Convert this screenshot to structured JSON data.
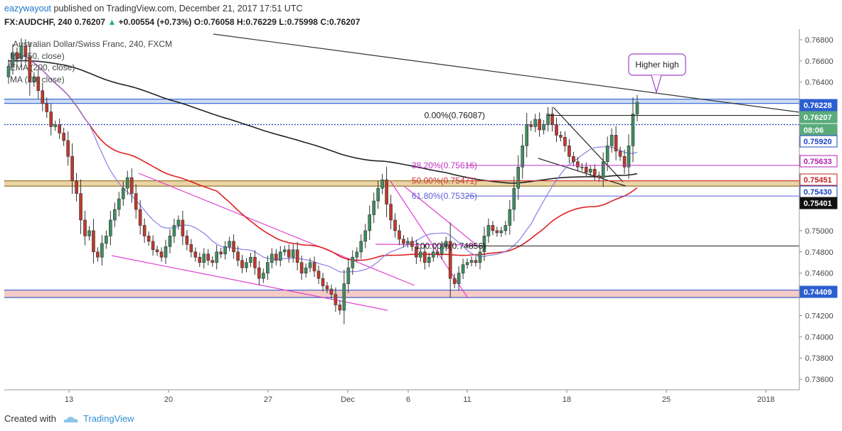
{
  "header": {
    "user": "eazywayout",
    "published": "published on TradingView.com, December 21, 2017 17:51 UTC",
    "symbol": "FX:AUDCHF, 240",
    "last": "0.76207",
    "change_arrow": "▲",
    "change": "+0.00554 (+0.73%)",
    "o_label": "O:",
    "o": "0.76058",
    "h_label": "H:",
    "h": "0.76229",
    "l_label": "L:",
    "l": "0.75998",
    "c_label": "C:",
    "c": "0.76207"
  },
  "legend": {
    "title": "Australian Dollar/Swiss Franc, 240, FXCM",
    "items": [
      "MA (50, close)",
      "EMA (200, close)",
      "MA (20, close)"
    ]
  },
  "footer": {
    "created_with": "Created with",
    "brand": "TradingView"
  },
  "colors": {
    "up": "#26a69a",
    "down": "#ef5350",
    "candle_up": "#3e8e63",
    "candle_down": "#c0392b",
    "ma50": "#e02020",
    "ema200": "#222222",
    "ma20": "#8a7ee8",
    "magenta": "#e040d0",
    "fib": "#1a1a1a",
    "blue_zone": "#3f72d6",
    "gold_zone": "#d9b060",
    "red_zone": "#f2b8b4",
    "label_blue": "#1846c4"
  },
  "chart_data": {
    "type": "candlestick",
    "price_axis": {
      "range": [
        0.735,
        0.769
      ],
      "ticks": [
        "0.76800",
        "0.76600",
        "0.76400",
        "0.76200",
        "0.75920",
        "0.75633",
        "0.75451",
        "0.75430",
        "0.75401",
        "0.75000",
        "0.74800",
        "0.74600",
        "0.74409",
        "0.74200",
        "0.74000",
        "0.73800",
        "0.73600"
      ],
      "plain_ticks": [
        "0.76800",
        "0.76600",
        "0.76400",
        "0.76200",
        "0.75000",
        "0.74800",
        "0.74600",
        "0.74200",
        "0.74000",
        "0.73800",
        "0.73600"
      ]
    },
    "price_tags": [
      {
        "value": "0.76228",
        "price": 0.76228,
        "style": "blue"
      },
      {
        "value": "0.76207",
        "price": 0.76207,
        "style": "green"
      },
      {
        "value": "08:06",
        "price": 0.761,
        "style": "green"
      },
      {
        "value": "0.75920",
        "price": 0.7592,
        "style": "blue-outline"
      },
      {
        "value": "0.75633",
        "price": 0.75633,
        "style": "magenta"
      },
      {
        "value": "0.75451",
        "price": 0.75451,
        "style": "red"
      },
      {
        "value": "0.75430",
        "price": 0.7543,
        "style": "blue-outline"
      },
      {
        "value": "0.75401",
        "price": 0.75401,
        "style": "black"
      },
      {
        "value": "0.74409",
        "price": 0.74409,
        "style": "blue"
      }
    ],
    "x_axis": {
      "labels": [
        "13",
        "20",
        "27",
        "Dec",
        "6",
        "11",
        "18",
        "25",
        "2018"
      ]
    },
    "fibonacci": [
      {
        "label": "0.00%(0.76087)",
        "price": 0.76087,
        "color": "#1a1a1a"
      },
      {
        "label": "38.20%(0.75616)",
        "price": 0.75616,
        "color": "#c030c0"
      },
      {
        "label": "50.00%(0.75471)",
        "price": 0.75471,
        "color": "#d03030"
      },
      {
        "label": "61.80%(0.75326)",
        "price": 0.75326,
        "color": "#5c5cd8"
      },
      {
        "label": "100.00%(0.74856)",
        "price": 0.74856,
        "color": "#1a1a1a"
      }
    ],
    "zones": [
      {
        "name": "resistance",
        "from": 0.762,
        "to": 0.7624
      },
      {
        "name": "support",
        "from": 0.7542,
        "to": 0.7547
      },
      {
        "name": "base",
        "from": 0.7437,
        "to": 0.7444
      }
    ],
    "dotted_level": 0.76,
    "annotation": "Higher high",
    "closes": [
      0.7655,
      0.7668,
      0.7662,
      0.7674,
      0.7664,
      0.764,
      0.7645,
      0.7632,
      0.762,
      0.7612,
      0.7598,
      0.76,
      0.7592,
      0.7585,
      0.757,
      0.7547,
      0.7535,
      0.751,
      0.7495,
      0.75,
      0.748,
      0.7475,
      0.7488,
      0.7495,
      0.751,
      0.752,
      0.753,
      0.754,
      0.755,
      0.7535,
      0.752,
      0.7505,
      0.7495,
      0.749,
      0.7482,
      0.748,
      0.7475,
      0.7485,
      0.7495,
      0.7505,
      0.751,
      0.7495,
      0.7487,
      0.748,
      0.7475,
      0.747,
      0.7478,
      0.7472,
      0.747,
      0.748,
      0.7478,
      0.7485,
      0.749,
      0.748,
      0.7472,
      0.7465,
      0.747,
      0.7475,
      0.7465,
      0.7455,
      0.746,
      0.747,
      0.7478,
      0.7472,
      0.748,
      0.7482,
      0.7475,
      0.7482,
      0.747,
      0.746,
      0.7465,
      0.747,
      0.7462,
      0.7455,
      0.7448,
      0.7445,
      0.744,
      0.743,
      0.7425,
      0.745,
      0.7465,
      0.7475,
      0.748,
      0.749,
      0.75,
      0.7515,
      0.7528,
      0.754,
      0.7548,
      0.7525,
      0.751,
      0.75,
      0.7492,
      0.7488,
      0.749,
      0.7485,
      0.7475,
      0.748,
      0.747,
      0.7475,
      0.748,
      0.7478,
      0.7485,
      0.749,
      0.7455,
      0.745,
      0.746,
      0.7468,
      0.747,
      0.7472,
      0.747,
      0.748,
      0.7495,
      0.7505,
      0.75,
      0.7498,
      0.75,
      0.7505,
      0.752,
      0.754,
      0.756,
      0.758,
      0.76,
      0.7598,
      0.7605,
      0.7595,
      0.76,
      0.761,
      0.76,
      0.759,
      0.7588,
      0.758,
      0.757,
      0.7565,
      0.756,
      0.756,
      0.7555,
      0.7558,
      0.7552,
      0.755,
      0.7565,
      0.758,
      0.759,
      0.7575,
      0.757,
      0.756,
      0.758,
      0.761,
      0.7621
    ]
  }
}
